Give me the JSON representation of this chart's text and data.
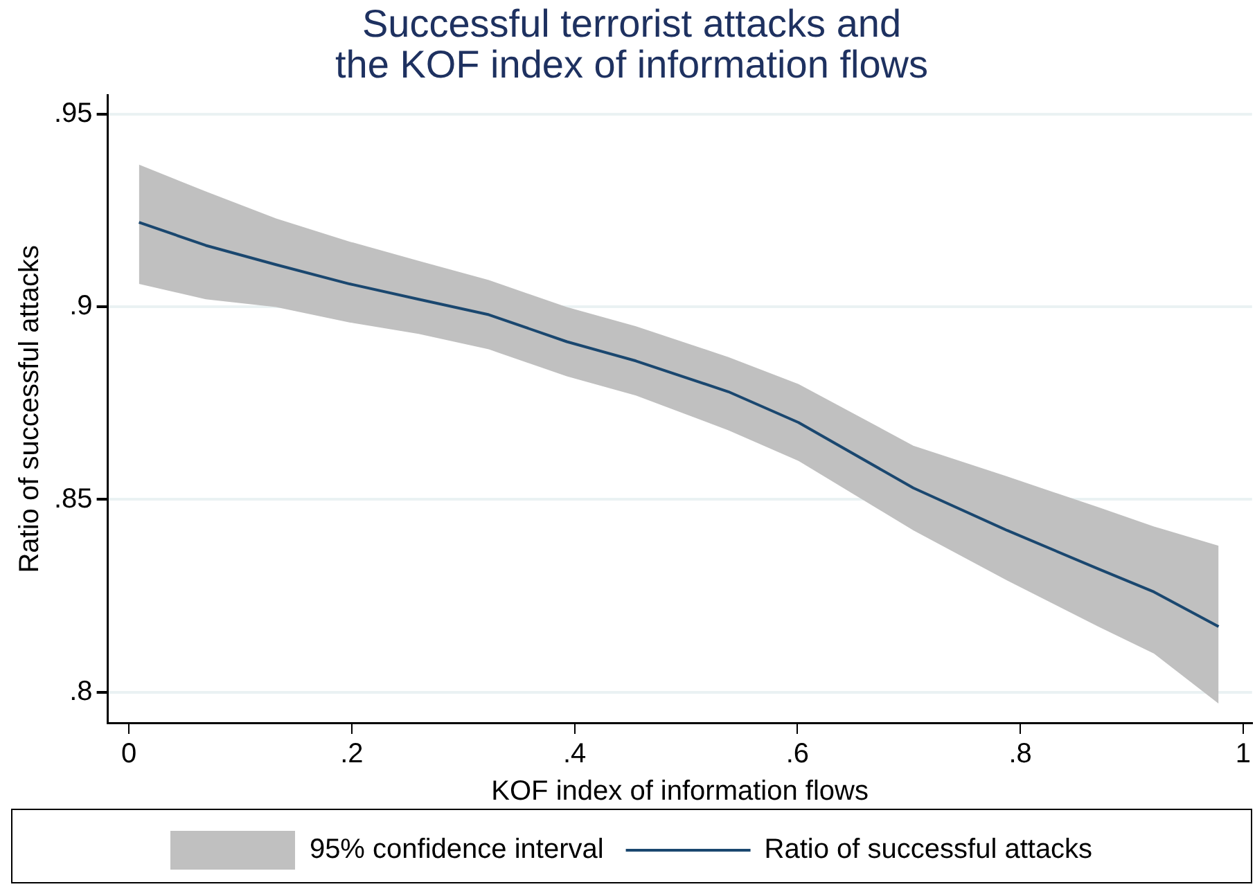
{
  "chart_data": {
    "type": "line",
    "title": [
      "Successful terrorist attacks and",
      "the KOF index of information flows"
    ],
    "xlabel": "KOF index of information flows",
    "ylabel": "Ratio of successful attacks",
    "x": [
      0.009,
      0.069,
      0.132,
      0.198,
      0.26,
      0.323,
      0.393,
      0.455,
      0.538,
      0.601,
      0.704,
      0.788,
      0.87,
      0.92,
      0.978
    ],
    "series": [
      {
        "name": "Ratio of successful attacks",
        "type": "line",
        "color": "#1a476f",
        "values": [
          0.922,
          0.916,
          0.911,
          0.906,
          0.902,
          0.898,
          0.891,
          0.886,
          0.878,
          0.87,
          0.853,
          0.842,
          0.832,
          0.826,
          0.817
        ],
        "lower": [
          0.906,
          0.902,
          0.9,
          0.896,
          0.893,
          0.889,
          0.882,
          0.877,
          0.868,
          0.86,
          0.842,
          0.829,
          0.817,
          0.81,
          0.797
        ],
        "upper": [
          0.937,
          0.93,
          0.923,
          0.917,
          0.912,
          0.907,
          0.9,
          0.895,
          0.887,
          0.88,
          0.864,
          0.856,
          0.848,
          0.843,
          0.838
        ]
      }
    ],
    "annotations": [
      "95% confidence interval"
    ],
    "xlim": [
      -0.019,
      1.008
    ],
    "ylim": [
      0.792,
      0.955
    ],
    "xticks": [
      0,
      {
        "value": 0.2,
        "label": ".2"
      },
      {
        "value": 0.4,
        "label": ".4"
      },
      {
        "value": 0.6,
        "label": ".6"
      },
      {
        "value": 0.8,
        "label": ".8"
      },
      1
    ],
    "yticks": [
      {
        "value": 0.8,
        "label": ".8"
      },
      {
        "value": 0.85,
        "label": ".85"
      },
      {
        "value": 0.9,
        "label": ".9"
      },
      {
        "value": 0.95,
        "label": ".95"
      }
    ],
    "grid": "y",
    "legend": "bottom",
    "marker": "none",
    "line_style": "solid"
  }
}
